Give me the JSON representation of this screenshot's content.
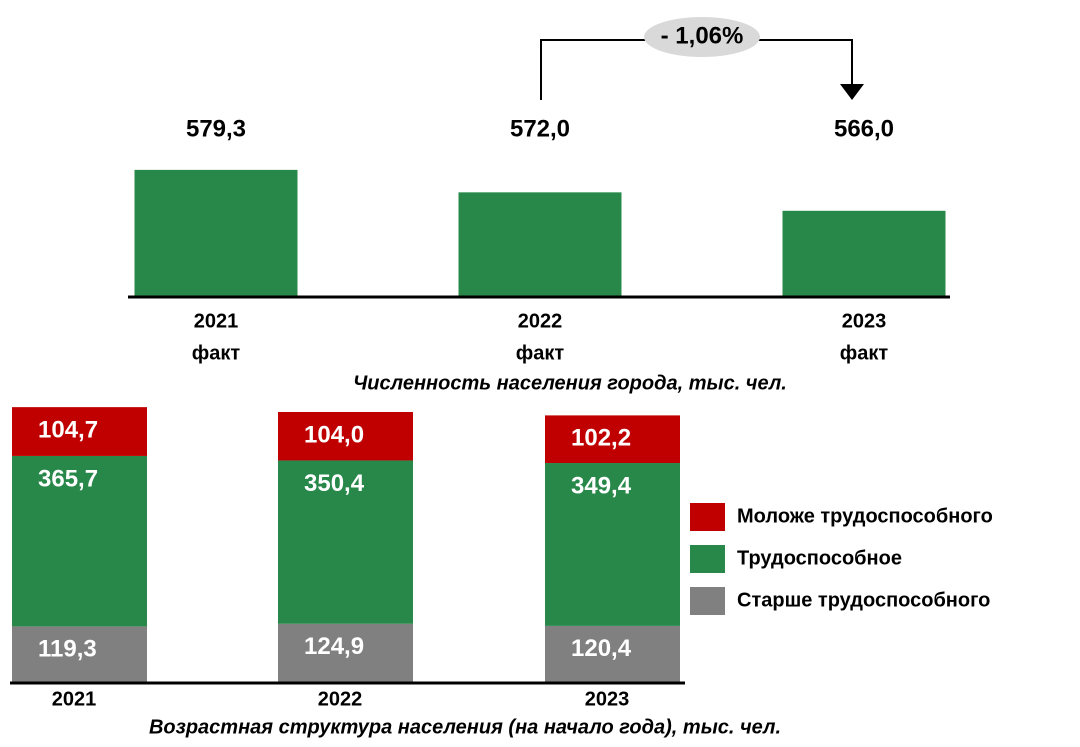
{
  "chart_data": [
    {
      "type": "bar",
      "title": "Численность населения города, тыс. чел.",
      "categories": [
        [
          "2021",
          "факт"
        ],
        [
          "2022",
          "факт"
        ],
        [
          "2023",
          "факт"
        ]
      ],
      "values": [
        579.3,
        572.0,
        566.0
      ],
      "value_labels": [
        "579,3",
        "572,0",
        "566,0"
      ],
      "color": "#27884a",
      "ylim": [
        538,
        602
      ],
      "annotation": "- 1,06%"
    },
    {
      "type": "stacked_bar",
      "title": "Возрастная структура населения (на начало года), тыс. чел.",
      "categories": [
        "2021",
        "2022",
        "2023"
      ],
      "series": [
        {
          "name": "Старше трудоспособного",
          "color": "#808080",
          "values": [
            119.3,
            124.9,
            120.4
          ],
          "value_labels": [
            "119,3",
            "124,9",
            "120,4"
          ]
        },
        {
          "name": "Трудоспособное",
          "color": "#27884a",
          "values": [
            365.7,
            350.4,
            349.4
          ],
          "value_labels": [
            "365,7",
            "350,4",
            "349,4"
          ]
        },
        {
          "name": "Моложе трудоспособного",
          "color": "#c00000",
          "values": [
            104.7,
            104.0,
            102.2
          ],
          "value_labels": [
            "104,7",
            "104,0",
            "102,2"
          ]
        }
      ],
      "ylim": [
        0,
        590
      ]
    }
  ]
}
